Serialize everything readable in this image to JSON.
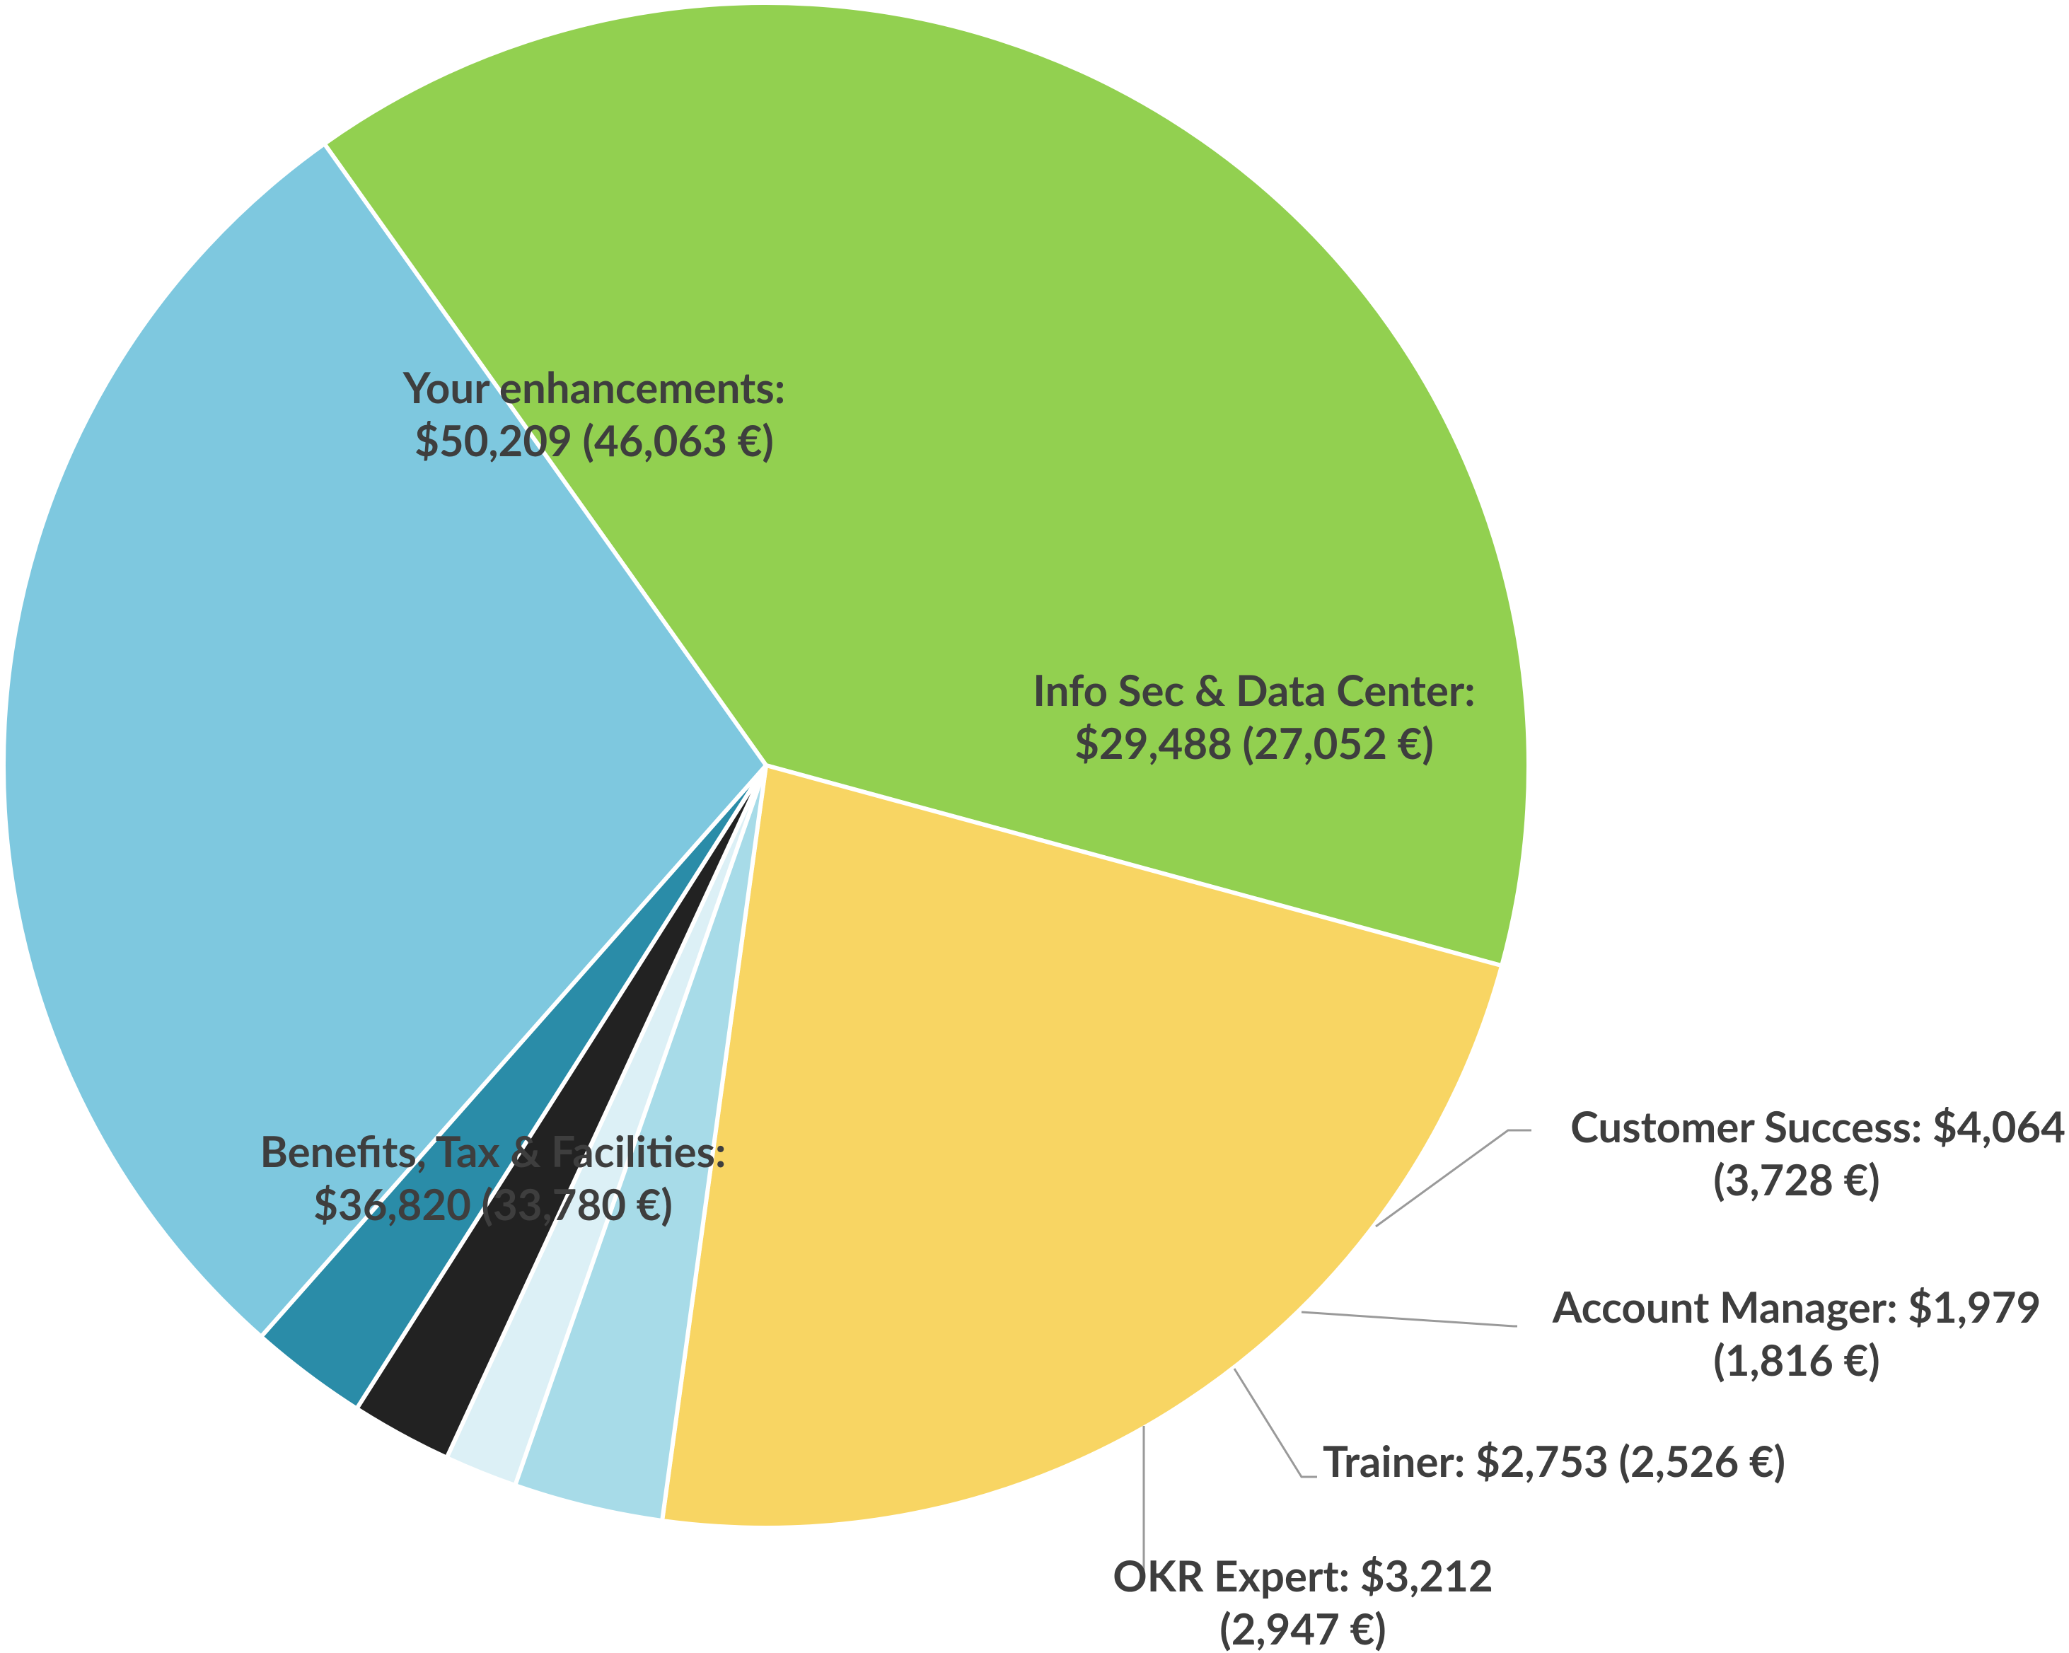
{
  "chart_data": {
    "type": "pie",
    "slices": [
      {
        "label": "Your enhancements:",
        "value": 50209,
        "value_text": "$50,209 (46,063 €)",
        "eur": 46063,
        "color": "#92d050"
      },
      {
        "label": "Info Sec & Data Center:",
        "value": 29488,
        "value_text": "$29,488 (27,052 €)",
        "eur": 27052,
        "color": "#f8d563"
      },
      {
        "label": "Customer Success:",
        "value": 4064,
        "value_text": "$4,064",
        "value_text2": "(3,728 €)",
        "eur": 3728,
        "color": "#a7dbe8"
      },
      {
        "label": "Account Manager:",
        "value": 1979,
        "value_text": "$1,979",
        "value_text2": "(1,816 €)",
        "eur": 1816,
        "color": "#dcf0f6"
      },
      {
        "label": "Trainer:",
        "value": 2753,
        "value_text": "$2,753 (2,526 €)",
        "eur": 2526,
        "color": "#222222"
      },
      {
        "label": "OKR Expert:",
        "value": 3212,
        "value_text": "$3,212",
        "value_text2": "(2,947 €)",
        "eur": 2947,
        "color": "#2a8ca8"
      },
      {
        "label": "Benefits, Tax & Facilities:",
        "value": 36820,
        "value_text": "$36,820 (33,780 €)",
        "eur": 33780,
        "color": "#7ec8df"
      }
    ],
    "start_angle_deg": -35.4,
    "direction": "clockwise"
  }
}
